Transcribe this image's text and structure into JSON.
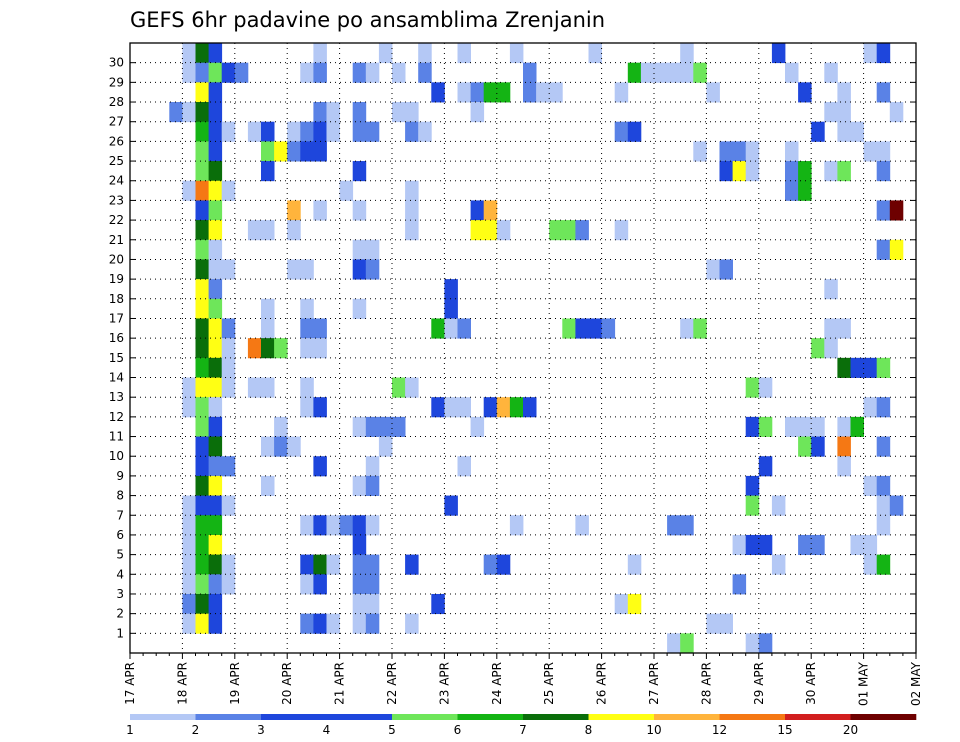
{
  "chart_data": {
    "type": "heatmap",
    "title": "GEFS 6hr padavine po ansamblima Zrenjanin",
    "xlabel": "",
    "ylabel": "",
    "x_labels": [
      "17 APR",
      "18 APR",
      "19 APR",
      "20 APR",
      "21 APR",
      "22 APR",
      "23 APR",
      "24 APR",
      "25 APR",
      "26 APR",
      "27 APR",
      "28 APR",
      "29 APR",
      "30 APR",
      "01 MAY",
      "02 MAY"
    ],
    "y_labels": [
      "1",
      "2",
      "3",
      "4",
      "5",
      "6",
      "7",
      "8",
      "9",
      "10",
      "11",
      "12",
      "13",
      "14",
      "15",
      "16",
      "17",
      "18",
      "19",
      "20",
      "21",
      "22",
      "23",
      "24",
      "25",
      "26",
      "27",
      "28",
      "29",
      "30"
    ],
    "time_steps_per_day": 4,
    "grid": true,
    "colorbar": {
      "labels": [
        "1",
        "2",
        "3",
        "4",
        "5",
        "6",
        "7",
        "8",
        "10",
        "12",
        "15",
        "20"
      ],
      "colors": [
        "#b4c8f5",
        "#5a82e6",
        "#1e46dc",
        "#1e46dc",
        "#6ee65a",
        "#14b414",
        "#0a6e0a",
        "#ffff14",
        "#ffb43c",
        "#f57814",
        "#d21e1e",
        "#6e0000"
      ]
    },
    "cell_colors": {
      "c1": "#b4c8f5",
      "c2": "#5a82e6",
      "c3": "#1e46dc",
      "c4": "#6ee65a",
      "c5": "#14b414",
      "c6": "#0a6e0a",
      "c7": "#ffff14",
      "c8": "#ffb43c",
      "c9": "#f57814",
      "c10": "#6e0000"
    },
    "cells": [
      [
        30,
        4,
        1
      ],
      [
        30,
        5,
        6
      ],
      [
        30,
        6,
        3
      ],
      [
        30,
        14,
        1
      ],
      [
        30,
        19,
        1
      ],
      [
        30,
        22,
        1
      ],
      [
        30,
        25,
        1
      ],
      [
        30,
        29,
        1
      ],
      [
        30,
        35,
        1
      ],
      [
        30,
        42,
        1
      ],
      [
        30,
        49,
        3
      ],
      [
        30,
        56,
        1
      ],
      [
        30,
        57,
        3
      ],
      [
        29,
        4,
        1
      ],
      [
        29,
        5,
        2
      ],
      [
        29,
        6,
        4
      ],
      [
        29,
        7,
        3
      ],
      [
        29,
        8,
        2
      ],
      [
        29,
        13,
        1
      ],
      [
        29,
        14,
        2
      ],
      [
        29,
        17,
        2
      ],
      [
        29,
        18,
        1
      ],
      [
        29,
        20,
        1
      ],
      [
        29,
        22,
        2
      ],
      [
        29,
        30,
        2
      ],
      [
        29,
        38,
        5
      ],
      [
        29,
        39,
        1
      ],
      [
        29,
        40,
        1
      ],
      [
        29,
        41,
        1
      ],
      [
        29,
        42,
        1
      ],
      [
        29,
        43,
        4
      ],
      [
        29,
        50,
        1
      ],
      [
        29,
        53,
        1
      ],
      [
        28,
        5,
        7
      ],
      [
        28,
        6,
        3
      ],
      [
        28,
        23,
        3
      ],
      [
        28,
        25,
        1
      ],
      [
        28,
        26,
        2
      ],
      [
        28,
        27,
        5
      ],
      [
        28,
        28,
        5
      ],
      [
        28,
        30,
        2
      ],
      [
        28,
        31,
        1
      ],
      [
        28,
        32,
        1
      ],
      [
        28,
        37,
        1
      ],
      [
        28,
        44,
        1
      ],
      [
        28,
        51,
        3
      ],
      [
        28,
        54,
        1
      ],
      [
        28,
        57,
        2
      ],
      [
        27,
        3,
        2
      ],
      [
        27,
        4,
        1
      ],
      [
        27,
        5,
        6
      ],
      [
        27,
        6,
        3
      ],
      [
        27,
        14,
        2
      ],
      [
        27,
        15,
        1
      ],
      [
        27,
        17,
        2
      ],
      [
        27,
        20,
        1
      ],
      [
        27,
        21,
        1
      ],
      [
        27,
        26,
        1
      ],
      [
        27,
        53,
        1
      ],
      [
        27,
        54,
        1
      ],
      [
        27,
        58,
        1
      ],
      [
        26,
        5,
        5
      ],
      [
        26,
        6,
        3
      ],
      [
        26,
        7,
        1
      ],
      [
        26,
        9,
        1
      ],
      [
        26,
        10,
        3
      ],
      [
        26,
        12,
        1
      ],
      [
        26,
        13,
        2
      ],
      [
        26,
        14,
        3
      ],
      [
        26,
        15,
        1
      ],
      [
        26,
        17,
        2
      ],
      [
        26,
        18,
        2
      ],
      [
        26,
        21,
        2
      ],
      [
        26,
        22,
        1
      ],
      [
        26,
        37,
        2
      ],
      [
        26,
        38,
        3
      ],
      [
        26,
        52,
        3
      ],
      [
        26,
        54,
        1
      ],
      [
        26,
        55,
        1
      ],
      [
        25,
        5,
        4
      ],
      [
        25,
        6,
        3
      ],
      [
        25,
        10,
        4
      ],
      [
        25,
        11,
        7
      ],
      [
        25,
        12,
        2
      ],
      [
        25,
        13,
        3
      ],
      [
        25,
        14,
        3
      ],
      [
        25,
        43,
        1
      ],
      [
        25,
        45,
        2
      ],
      [
        25,
        46,
        2
      ],
      [
        25,
        47,
        1
      ],
      [
        25,
        50,
        1
      ],
      [
        25,
        56,
        1
      ],
      [
        25,
        57,
        1
      ],
      [
        24,
        5,
        4
      ],
      [
        24,
        6,
        6
      ],
      [
        24,
        10,
        3
      ],
      [
        24,
        17,
        3
      ],
      [
        24,
        45,
        3
      ],
      [
        24,
        46,
        7
      ],
      [
        24,
        47,
        1
      ],
      [
        24,
        50,
        2
      ],
      [
        24,
        51,
        5
      ],
      [
        24,
        53,
        1
      ],
      [
        24,
        54,
        4
      ],
      [
        24,
        57,
        2
      ],
      [
        23,
        4,
        1
      ],
      [
        23,
        5,
        9
      ],
      [
        23,
        6,
        7
      ],
      [
        23,
        7,
        1
      ],
      [
        23,
        16,
        1
      ],
      [
        23,
        21,
        1
      ],
      [
        23,
        50,
        2
      ],
      [
        23,
        51,
        5
      ],
      [
        22,
        5,
        3
      ],
      [
        22,
        6,
        4
      ],
      [
        22,
        12,
        8
      ],
      [
        22,
        14,
        1
      ],
      [
        22,
        17,
        1
      ],
      [
        22,
        21,
        1
      ],
      [
        22,
        26,
        3
      ],
      [
        22,
        27,
        8
      ],
      [
        22,
        57,
        2
      ],
      [
        22,
        58,
        10
      ],
      [
        21,
        5,
        6
      ],
      [
        21,
        6,
        7
      ],
      [
        21,
        9,
        1
      ],
      [
        21,
        10,
        1
      ],
      [
        21,
        12,
        1
      ],
      [
        21,
        21,
        1
      ],
      [
        21,
        26,
        7
      ],
      [
        21,
        27,
        7
      ],
      [
        21,
        28,
        1
      ],
      [
        21,
        32,
        4
      ],
      [
        21,
        33,
        4
      ],
      [
        21,
        34,
        2
      ],
      [
        21,
        37,
        1
      ],
      [
        20,
        5,
        4
      ],
      [
        20,
        6,
        1
      ],
      [
        20,
        17,
        1
      ],
      [
        20,
        18,
        1
      ],
      [
        20,
        57,
        2
      ],
      [
        20,
        58,
        7
      ],
      [
        19,
        5,
        6
      ],
      [
        19,
        6,
        1
      ],
      [
        19,
        7,
        1
      ],
      [
        19,
        12,
        1
      ],
      [
        19,
        13,
        1
      ],
      [
        19,
        17,
        3
      ],
      [
        19,
        18,
        2
      ],
      [
        19,
        44,
        1
      ],
      [
        19,
        45,
        2
      ],
      [
        18,
        5,
        7
      ],
      [
        18,
        6,
        2
      ],
      [
        18,
        24,
        3
      ],
      [
        18,
        53,
        1
      ],
      [
        17,
        5,
        7
      ],
      [
        17,
        6,
        4
      ],
      [
        17,
        10,
        1
      ],
      [
        17,
        13,
        1
      ],
      [
        17,
        17,
        1
      ],
      [
        17,
        24,
        3
      ],
      [
        16,
        5,
        6
      ],
      [
        16,
        6,
        7
      ],
      [
        16,
        7,
        2
      ],
      [
        16,
        10,
        1
      ],
      [
        16,
        13,
        2
      ],
      [
        16,
        14,
        2
      ],
      [
        16,
        23,
        5
      ],
      [
        16,
        24,
        1
      ],
      [
        16,
        25,
        2
      ],
      [
        16,
        33,
        4
      ],
      [
        16,
        34,
        3
      ],
      [
        16,
        35,
        3
      ],
      [
        16,
        36,
        2
      ],
      [
        16,
        42,
        1
      ],
      [
        16,
        43,
        4
      ],
      [
        16,
        53,
        1
      ],
      [
        16,
        54,
        1
      ],
      [
        15,
        5,
        6
      ],
      [
        15,
        6,
        7
      ],
      [
        15,
        7,
        1
      ],
      [
        15,
        9,
        9
      ],
      [
        15,
        10,
        6
      ],
      [
        15,
        11,
        4
      ],
      [
        15,
        13,
        1
      ],
      [
        15,
        14,
        1
      ],
      [
        15,
        52,
        4
      ],
      [
        15,
        53,
        1
      ],
      [
        14,
        5,
        5
      ],
      [
        14,
        6,
        6
      ],
      [
        14,
        7,
        1
      ],
      [
        14,
        54,
        6
      ],
      [
        14,
        55,
        3
      ],
      [
        14,
        56,
        3
      ],
      [
        14,
        57,
        4
      ],
      [
        13,
        4,
        1
      ],
      [
        13,
        5,
        7
      ],
      [
        13,
        6,
        7
      ],
      [
        13,
        7,
        1
      ],
      [
        13,
        9,
        1
      ],
      [
        13,
        10,
        1
      ],
      [
        13,
        13,
        1
      ],
      [
        13,
        20,
        4
      ],
      [
        13,
        21,
        1
      ],
      [
        13,
        47,
        4
      ],
      [
        13,
        48,
        1
      ],
      [
        12,
        4,
        1
      ],
      [
        12,
        5,
        4
      ],
      [
        12,
        6,
        1
      ],
      [
        12,
        13,
        1
      ],
      [
        12,
        14,
        3
      ],
      [
        12,
        23,
        3
      ],
      [
        12,
        24,
        1
      ],
      [
        12,
        25,
        1
      ],
      [
        12,
        27,
        3
      ],
      [
        12,
        28,
        8
      ],
      [
        12,
        29,
        5
      ],
      [
        12,
        30,
        3
      ],
      [
        12,
        56,
        1
      ],
      [
        12,
        57,
        2
      ],
      [
        11,
        5,
        4
      ],
      [
        11,
        6,
        3
      ],
      [
        11,
        11,
        1
      ],
      [
        11,
        17,
        1
      ],
      [
        11,
        18,
        2
      ],
      [
        11,
        19,
        2
      ],
      [
        11,
        20,
        2
      ],
      [
        11,
        26,
        1
      ],
      [
        11,
        47,
        3
      ],
      [
        11,
        48,
        4
      ],
      [
        11,
        50,
        1
      ],
      [
        11,
        51,
        1
      ],
      [
        11,
        52,
        1
      ],
      [
        11,
        54,
        1
      ],
      [
        11,
        55,
        5
      ],
      [
        10,
        5,
        3
      ],
      [
        10,
        6,
        6
      ],
      [
        10,
        10,
        1
      ],
      [
        10,
        11,
        2
      ],
      [
        10,
        12,
        1
      ],
      [
        10,
        19,
        1
      ],
      [
        10,
        51,
        4
      ],
      [
        10,
        52,
        3
      ],
      [
        10,
        54,
        9
      ],
      [
        10,
        57,
        2
      ],
      [
        9,
        5,
        3
      ],
      [
        9,
        6,
        2
      ],
      [
        9,
        7,
        2
      ],
      [
        9,
        14,
        3
      ],
      [
        9,
        18,
        1
      ],
      [
        9,
        25,
        1
      ],
      [
        9,
        48,
        3
      ],
      [
        9,
        54,
        1
      ],
      [
        8,
        5,
        6
      ],
      [
        8,
        6,
        7
      ],
      [
        8,
        10,
        1
      ],
      [
        8,
        17,
        1
      ],
      [
        8,
        18,
        2
      ],
      [
        8,
        47,
        3
      ],
      [
        8,
        56,
        1
      ],
      [
        8,
        57,
        2
      ],
      [
        7,
        4,
        1
      ],
      [
        7,
        5,
        3
      ],
      [
        7,
        6,
        3
      ],
      [
        7,
        7,
        1
      ],
      [
        7,
        24,
        3
      ],
      [
        7,
        47,
        4
      ],
      [
        7,
        49,
        1
      ],
      [
        7,
        57,
        1
      ],
      [
        7,
        58,
        2
      ],
      [
        6,
        4,
        1
      ],
      [
        6,
        5,
        5
      ],
      [
        6,
        6,
        5
      ],
      [
        6,
        13,
        1
      ],
      [
        6,
        14,
        3
      ],
      [
        6,
        15,
        1
      ],
      [
        6,
        16,
        2
      ],
      [
        6,
        17,
        3
      ],
      [
        6,
        18,
        1
      ],
      [
        6,
        29,
        1
      ],
      [
        6,
        34,
        1
      ],
      [
        6,
        41,
        2
      ],
      [
        6,
        42,
        2
      ],
      [
        6,
        57,
        1
      ],
      [
        5,
        4,
        1
      ],
      [
        5,
        5,
        5
      ],
      [
        5,
        6,
        7
      ],
      [
        5,
        17,
        3
      ],
      [
        5,
        46,
        1
      ],
      [
        5,
        47,
        3
      ],
      [
        5,
        48,
        3
      ],
      [
        5,
        51,
        2
      ],
      [
        5,
        52,
        2
      ],
      [
        5,
        55,
        1
      ],
      [
        5,
        56,
        1
      ],
      [
        4,
        4,
        1
      ],
      [
        4,
        5,
        5
      ],
      [
        4,
        6,
        6
      ],
      [
        4,
        7,
        1
      ],
      [
        4,
        13,
        3
      ],
      [
        4,
        14,
        6
      ],
      [
        4,
        15,
        1
      ],
      [
        4,
        17,
        2
      ],
      [
        4,
        18,
        2
      ],
      [
        4,
        21,
        3
      ],
      [
        4,
        27,
        2
      ],
      [
        4,
        28,
        3
      ],
      [
        4,
        38,
        1
      ],
      [
        4,
        49,
        1
      ],
      [
        4,
        56,
        1
      ],
      [
        4,
        57,
        5
      ],
      [
        3,
        4,
        1
      ],
      [
        3,
        5,
        4
      ],
      [
        3,
        6,
        2
      ],
      [
        3,
        7,
        1
      ],
      [
        3,
        13,
        1
      ],
      [
        3,
        14,
        3
      ],
      [
        3,
        17,
        2
      ],
      [
        3,
        18,
        2
      ],
      [
        3,
        46,
        2
      ],
      [
        2,
        4,
        2
      ],
      [
        2,
        5,
        6
      ],
      [
        2,
        6,
        3
      ],
      [
        2,
        17,
        1
      ],
      [
        2,
        18,
        1
      ],
      [
        2,
        23,
        3
      ],
      [
        2,
        37,
        1
      ],
      [
        2,
        38,
        7
      ],
      [
        1,
        4,
        1
      ],
      [
        1,
        5,
        7
      ],
      [
        1,
        6,
        3
      ],
      [
        1,
        13,
        2
      ],
      [
        1,
        14,
        3
      ],
      [
        1,
        15,
        1
      ],
      [
        1,
        17,
        1
      ],
      [
        1,
        18,
        2
      ],
      [
        1,
        21,
        1
      ],
      [
        1,
        44,
        1
      ],
      [
        1,
        45,
        1
      ],
      [
        0,
        41,
        1
      ],
      [
        0,
        42,
        4
      ],
      [
        0,
        47,
        1
      ],
      [
        0,
        48,
        2
      ]
    ]
  }
}
